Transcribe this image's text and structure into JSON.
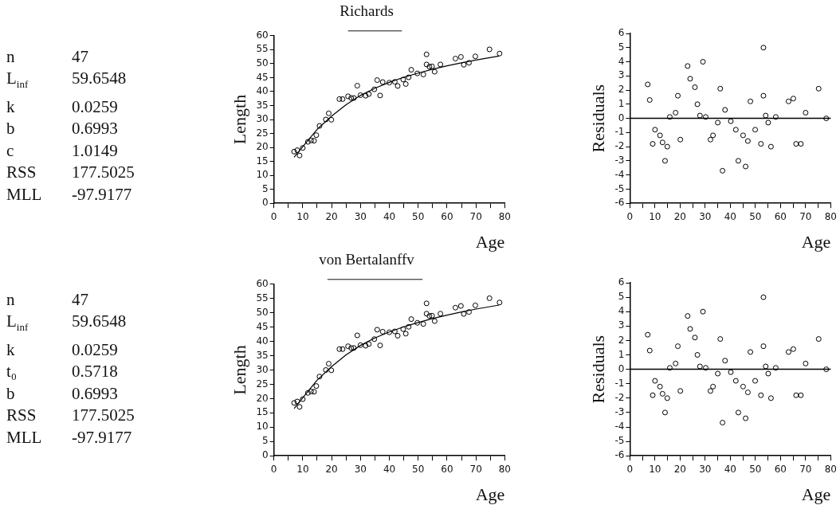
{
  "chart_data": [
    {
      "type": "other",
      "annotations": [
        "n",
        "47",
        "L$_{inf}$",
        "59.6548",
        "k",
        "0.0259",
        "b",
        "0.6993",
        "c",
        "1.0149",
        "RSS",
        "177.5025",
        "MLL",
        "-97.9177"
      ]
    },
    {
      "type": "scatter",
      "title": "Richards",
      "xlabel": "Age",
      "ylabel": "Length",
      "grid": false,
      "marker": "circle",
      "x": [
        7.0,
        8.1,
        8.9,
        10.0,
        11.8,
        12.9,
        13.9,
        14.7,
        15.8,
        18.0,
        19.0,
        19.9,
        22.7,
        23.8,
        25.7,
        26.8,
        27.7,
        28.9,
        30.0,
        31.8,
        32.9,
        34.8,
        35.8,
        36.8,
        37.7,
        40.0,
        41.9,
        42.9,
        44.8,
        45.7,
        46.7,
        47.6,
        49.7,
        51.8,
        52.9,
        52.9,
        53.9,
        54.8,
        55.7,
        57.7,
        62.9,
        64.8,
        65.8,
        67.6,
        69.8,
        74.7,
        78.2
      ],
      "xlim": [
        0,
        80
      ],
      "xticks": [
        0,
        {
          "value": 5,
          "label": null
        },
        10,
        {
          "value": 15,
          "label": null
        },
        20,
        {
          "value": 25,
          "label": null
        },
        30,
        {
          "value": 35,
          "label": null
        },
        40,
        {
          "value": 45,
          "label": null
        },
        50,
        {
          "value": 55,
          "label": null
        },
        60,
        {
          "value": 65,
          "label": null
        },
        70,
        {
          "value": 75,
          "label": null
        },
        80
      ],
      "ylim": [
        0,
        60
      ],
      "yticks": [
        0,
        5,
        10,
        15,
        20,
        25,
        30,
        35,
        40,
        45,
        50,
        55,
        60
      ],
      "series": [
        {
          "type": "scatter",
          "color": "#000000",
          "values": [
            18.5,
            19.0,
            17.1,
            19.8,
            22.0,
            22.5,
            22.4,
            24.4,
            27.7,
            30.0,
            32.2,
            29.9,
            37.3,
            37.3,
            38.3,
            37.7,
            37.7,
            42.1,
            38.7,
            38.5,
            39.1,
            40.8,
            44.1,
            38.6,
            43.4,
            43.2,
            43.5,
            42.0,
            44.3,
            42.7,
            45.1,
            47.8,
            46.5,
            46.1,
            53.3,
            49.7,
            48.9,
            49.0,
            47.1,
            49.7,
            51.8,
            52.4,
            49.6,
            50.3,
            52.6,
            55.1,
            53.6
          ]
        },
        {
          "type": "line",
          "color": "#000000",
          "marker": "none",
          "x": [
            7,
            10,
            15,
            20,
            25,
            30,
            35,
            40,
            45,
            50,
            55,
            60,
            65,
            70,
            78
          ],
          "values": [
            16.5,
            20.3,
            26.5,
            31.2,
            35.3,
            38.6,
            41.2,
            43.3,
            45.1,
            46.6,
            48.0,
            49.2,
            50.3,
            51.3,
            52.7
          ]
        }
      ]
    },
    {
      "type": "scatter",
      "xlabel": "Age",
      "ylabel": "Residuals",
      "grid": false,
      "marker": "circle",
      "x": [
        7.1,
        7.9,
        9.1,
        10.0,
        12.0,
        13.0,
        14.0,
        14.9,
        15.9,
        18.2,
        19.1,
        20.1,
        23.0,
        24.0,
        25.9,
        26.9,
        27.9,
        29.1,
        30.2,
        32.1,
        33.1,
        35.0,
        36.0,
        36.9,
        37.9,
        40.2,
        42.2,
        43.2,
        45.1,
        46.1,
        47.0,
        48.0,
        49.9,
        52.2,
        53.2,
        53.2,
        54.1,
        55.1,
        56.2,
        58.1,
        63.2,
        65.1,
        66.2,
        68.1,
        70.0,
        75.2,
        78.2
      ],
      "xlim": [
        0,
        80
      ],
      "xticks": [
        0,
        {
          "value": 5,
          "label": null
        },
        10,
        {
          "value": 15,
          "label": null
        },
        20,
        {
          "value": 25,
          "label": null
        },
        30,
        {
          "value": 35,
          "label": null
        },
        40,
        {
          "value": 45,
          "label": null
        },
        50,
        {
          "value": 55,
          "label": null
        },
        60,
        {
          "value": 65,
          "label": null
        },
        70,
        {
          "value": 75,
          "label": null
        },
        80
      ],
      "ylim": [
        -6,
        6
      ],
      "yticks": [
        -6,
        -5,
        -4,
        -3,
        -2,
        -1,
        0,
        1,
        2,
        3,
        4,
        5,
        6
      ],
      "ref_lines": [
        {
          "axis": "y",
          "value": 0,
          "color": "#000000"
        }
      ],
      "series": [
        {
          "type": "scatter",
          "color": "#000000",
          "values": [
            2.4,
            1.3,
            -1.8,
            -0.8,
            -1.2,
            -1.7,
            -3.0,
            -2.0,
            0.1,
            0.4,
            1.6,
            -1.5,
            3.7,
            2.8,
            2.2,
            1.0,
            0.2,
            4.0,
            0.1,
            -1.5,
            -1.2,
            -0.3,
            2.1,
            -3.7,
            0.6,
            -0.2,
            -0.8,
            -3.0,
            -1.2,
            -3.4,
            -1.6,
            1.2,
            -0.8,
            -1.8,
            5.0,
            1.6,
            0.2,
            -0.3,
            -2.0,
            0.1,
            1.2,
            1.4,
            -1.8,
            -1.8,
            0.4,
            2.1,
            0.0
          ]
        }
      ]
    },
    {
      "type": "other",
      "annotations": [
        "n",
        "47",
        "L$_{inf}$",
        "59.6548",
        "k",
        "0.0259",
        "t₀",
        "0.5718",
        "b",
        "0.6993",
        "RSS",
        "177.5025",
        "MLL",
        "-97.9177"
      ]
    },
    {
      "type": "scatter",
      "title": "von Bertalanffv",
      "xlabel": "Age",
      "ylabel": "Length",
      "grid": false,
      "marker": "circle",
      "x": [
        7.0,
        8.1,
        8.9,
        10.0,
        11.8,
        12.9,
        13.9,
        14.7,
        15.8,
        18.0,
        19.0,
        19.9,
        22.7,
        23.8,
        25.7,
        26.8,
        27.7,
        28.9,
        30.0,
        31.8,
        32.9,
        34.8,
        35.8,
        36.8,
        37.7,
        40.0,
        41.9,
        42.9,
        44.8,
        45.7,
        46.7,
        47.6,
        49.7,
        51.8,
        52.9,
        52.9,
        53.9,
        54.8,
        55.7,
        57.7,
        62.9,
        64.8,
        65.8,
        67.6,
        69.8,
        74.7,
        78.2
      ],
      "xlim": [
        0,
        80
      ],
      "xticks": [
        0,
        {
          "value": 5,
          "label": null
        },
        10,
        {
          "value": 15,
          "label": null
        },
        20,
        {
          "value": 25,
          "label": null
        },
        30,
        {
          "value": 35,
          "label": null
        },
        40,
        {
          "value": 45,
          "label": null
        },
        50,
        {
          "value": 55,
          "label": null
        },
        60,
        {
          "value": 65,
          "label": null
        },
        70,
        {
          "value": 75,
          "label": null
        },
        80
      ],
      "ylim": [
        0,
        60
      ],
      "yticks": [
        0,
        5,
        10,
        15,
        20,
        25,
        30,
        35,
        40,
        45,
        50,
        55,
        60
      ],
      "series": [
        {
          "type": "scatter",
          "color": "#000000",
          "values": [
            18.5,
            19.0,
            17.1,
            19.8,
            22.0,
            22.5,
            22.4,
            24.4,
            27.7,
            30.0,
            32.2,
            29.9,
            37.3,
            37.3,
            38.3,
            37.7,
            37.7,
            42.1,
            38.7,
            38.5,
            39.1,
            40.8,
            44.1,
            38.6,
            43.4,
            43.2,
            43.5,
            42.0,
            44.3,
            42.7,
            45.1,
            47.8,
            46.5,
            46.1,
            53.3,
            49.7,
            48.9,
            49.0,
            47.1,
            49.7,
            51.8,
            52.4,
            49.6,
            50.3,
            52.6,
            55.1,
            53.6
          ]
        },
        {
          "type": "line",
          "color": "#000000",
          "marker": "none",
          "x": [
            7,
            10,
            15,
            20,
            25,
            30,
            35,
            40,
            45,
            50,
            55,
            60,
            65,
            70,
            78
          ],
          "values": [
            16.5,
            20.3,
            26.5,
            31.2,
            35.3,
            38.6,
            41.2,
            43.3,
            45.1,
            46.6,
            48.0,
            49.2,
            50.3,
            51.3,
            52.7
          ]
        }
      ]
    },
    {
      "type": "scatter",
      "xlabel": "Age",
      "ylabel": "Residuals",
      "grid": false,
      "marker": "circle",
      "x": [
        7.1,
        7.9,
        9.1,
        10.0,
        12.0,
        13.0,
        14.0,
        14.9,
        15.9,
        18.2,
        19.1,
        20.1,
        23.0,
        24.0,
        25.9,
        26.9,
        27.9,
        29.1,
        30.2,
        32.1,
        33.1,
        35.0,
        36.0,
        36.9,
        37.9,
        40.2,
        42.2,
        43.2,
        45.1,
        46.1,
        47.0,
        48.0,
        49.9,
        52.2,
        53.2,
        53.2,
        54.1,
        55.1,
        56.2,
        58.1,
        63.2,
        65.1,
        66.2,
        68.1,
        70.0,
        75.2,
        78.2
      ],
      "xlim": [
        0,
        80
      ],
      "xticks": [
        0,
        {
          "value": 5,
          "label": null
        },
        10,
        {
          "value": 15,
          "label": null
        },
        20,
        {
          "value": 25,
          "label": null
        },
        30,
        {
          "value": 35,
          "label": null
        },
        40,
        {
          "value": 45,
          "label": null
        },
        50,
        {
          "value": 55,
          "label": null
        },
        60,
        {
          "value": 65,
          "label": null
        },
        70,
        {
          "value": 75,
          "label": null
        },
        80
      ],
      "ylim": [
        -6,
        6
      ],
      "yticks": [
        -6,
        -5,
        -4,
        -3,
        -2,
        -1,
        0,
        1,
        2,
        3,
        4,
        5,
        6
      ],
      "ref_lines": [
        {
          "axis": "y",
          "value": 0,
          "color": "#000000"
        }
      ],
      "series": [
        {
          "type": "scatter",
          "color": "#000000",
          "values": [
            2.4,
            1.3,
            -1.8,
            -0.8,
            -1.2,
            -1.7,
            -3.0,
            -2.0,
            0.1,
            0.4,
            1.6,
            -1.5,
            3.7,
            2.8,
            2.2,
            1.0,
            0.2,
            4.0,
            0.1,
            -1.5,
            -1.2,
            -0.3,
            2.1,
            -3.7,
            0.6,
            -0.2,
            -0.8,
            -3.0,
            -1.2,
            -3.4,
            -1.6,
            1.2,
            -0.8,
            -1.8,
            5.0,
            1.6,
            0.2,
            -0.3,
            -2.0,
            0.1,
            1.2,
            1.4,
            -1.8,
            -1.8,
            0.4,
            2.1,
            0.0
          ]
        }
      ]
    }
  ]
}
